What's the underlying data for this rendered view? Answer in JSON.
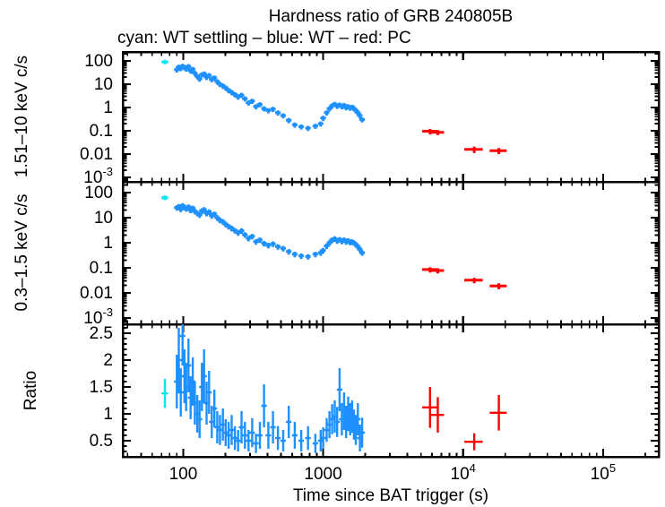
{
  "title": "Hardness ratio of GRB 240805B",
  "subtitle": "cyan: WT settling – blue: WT – red: PC",
  "colors": {
    "wt_settling": "#00e5ee",
    "wt": "#1e90ff",
    "pc": "#ff0000",
    "axis": "#000000"
  },
  "xaxis": {
    "label": "Time since BAT trigger (s)",
    "scale": "log",
    "lim": [
      37,
      250000
    ],
    "ticks": [
      {
        "v": 100,
        "label": "100"
      },
      {
        "v": 1000,
        "label": "1000"
      },
      {
        "v": 10000,
        "label": "10^4"
      },
      {
        "v": 100000,
        "label": "10^5"
      }
    ]
  },
  "chart_data": [
    {
      "type": "scatter",
      "name": "hard-band-lightcurve",
      "ylabel": "1.51–10 keV c/s",
      "xscale": "log",
      "yscale": "log",
      "xlim": [
        37,
        250000
      ],
      "ylim": [
        0.00064,
        242
      ],
      "yticks": [
        {
          "v": 100,
          "label": "100"
        },
        {
          "v": 10,
          "label": "10"
        },
        {
          "v": 1,
          "label": "1"
        },
        {
          "v": 0.1,
          "label": "0.1"
        },
        {
          "v": 0.01,
          "label": "0.01"
        },
        {
          "v": 0.001,
          "label": "10^-3"
        }
      ],
      "series": [
        {
          "name": "WT settling",
          "color_key": "wt_settling",
          "points": [
            [
              74,
              90,
              4,
              18
            ]
          ]
        },
        {
          "name": "WT",
          "color_key": "wt",
          "t": [
            90,
            93,
            96,
            99,
            102,
            105,
            109,
            113,
            117,
            121,
            126,
            131,
            136,
            141,
            147,
            153,
            160,
            167,
            175,
            183,
            192,
            201,
            211,
            222,
            234,
            247,
            261,
            276,
            293,
            311,
            331,
            353,
            378,
            406,
            438,
            475,
            518,
            568,
            627,
            697,
            780,
            880,
            960,
            1000,
            1060,
            1110,
            1160,
            1210,
            1260,
            1310,
            1360,
            1410,
            1460,
            1510,
            1560,
            1610,
            1660,
            1710,
            1770,
            1830,
            1900
          ],
          "y": [
            42,
            55,
            48,
            60,
            52,
            46,
            58,
            38,
            44,
            30,
            22,
            17,
            26,
            28,
            20,
            24,
            16,
            19,
            13,
            10,
            8.5,
            7,
            5.5,
            4.5,
            3.6,
            2.9,
            3.4,
            2.4,
            1.6,
            1.9,
            1.1,
            1.35,
            0.9,
            0.75,
            0.85,
            0.6,
            0.45,
            0.28,
            0.18,
            0.15,
            0.13,
            0.16,
            0.2,
            0.35,
            0.6,
            0.9,
            1.2,
            1.4,
            1.15,
            1.3,
            1.1,
            1.25,
            1.0,
            1.1,
            0.95,
            1.05,
            0.9,
            0.75,
            0.6,
            0.45,
            0.3
          ]
        },
        {
          "name": "PC",
          "color_key": "pc",
          "points": [
            [
              5800,
              0.095,
              700,
              0.025
            ],
            [
              6600,
              0.085,
              700,
              0.02
            ],
            [
              12000,
              0.016,
              1800,
              0.005
            ],
            [
              18000,
              0.014,
              2500,
              0.004
            ]
          ]
        }
      ]
    },
    {
      "type": "scatter",
      "name": "soft-band-lightcurve",
      "ylabel": "0.3–1.5 keV c/s",
      "xscale": "log",
      "yscale": "log",
      "xlim": [
        37,
        250000
      ],
      "ylim": [
        0.00056,
        268
      ],
      "yticks": [
        {
          "v": 100,
          "label": "100"
        },
        {
          "v": 10,
          "label": "10"
        },
        {
          "v": 1,
          "label": "1"
        },
        {
          "v": 0.1,
          "label": "0.1"
        },
        {
          "v": 0.01,
          "label": "0.01"
        },
        {
          "v": 0.001,
          "label": "10^-3"
        }
      ],
      "series": [
        {
          "name": "WT settling",
          "color_key": "wt_settling",
          "points": [
            [
              74,
              62,
              4,
              12
            ]
          ]
        },
        {
          "name": "WT",
          "color_key": "wt",
          "t": [
            90,
            93,
            96,
            99,
            102,
            105,
            109,
            113,
            117,
            121,
            126,
            131,
            136,
            141,
            147,
            153,
            160,
            167,
            175,
            183,
            192,
            201,
            211,
            222,
            234,
            247,
            261,
            276,
            293,
            311,
            331,
            353,
            378,
            406,
            438,
            475,
            518,
            568,
            627,
            697,
            780,
            880,
            960,
            1000,
            1060,
            1110,
            1160,
            1210,
            1260,
            1310,
            1360,
            1410,
            1460,
            1510,
            1560,
            1610,
            1660,
            1710,
            1770,
            1830,
            1900
          ],
          "y": [
            25,
            28,
            22,
            30,
            26,
            23,
            27,
            20,
            24,
            18,
            15,
            13,
            19,
            21,
            15,
            17,
            12,
            14,
            10,
            8,
            7,
            5.5,
            4.5,
            3.8,
            3.1,
            2.5,
            3.0,
            2.1,
            1.5,
            1.8,
            1.1,
            1.3,
            0.95,
            0.8,
            0.9,
            0.7,
            0.6,
            0.45,
            0.35,
            0.3,
            0.28,
            0.35,
            0.4,
            0.5,
            0.75,
            1.0,
            1.3,
            1.45,
            1.2,
            1.35,
            1.15,
            1.3,
            1.1,
            1.2,
            1.05,
            1.1,
            1.0,
            0.85,
            0.7,
            0.55,
            0.4
          ]
        },
        {
          "name": "PC",
          "color_key": "pc",
          "points": [
            [
              5800,
              0.085,
              700,
              0.02
            ],
            [
              6600,
              0.078,
              700,
              0.018
            ],
            [
              12000,
              0.032,
              1800,
              0.008
            ],
            [
              18000,
              0.019,
              2500,
              0.005
            ]
          ]
        }
      ]
    },
    {
      "type": "scatter",
      "name": "hardness-ratio",
      "ylabel": "Ratio",
      "xscale": "log",
      "yscale": "linear",
      "xlim": [
        37,
        250000
      ],
      "ylim": [
        0.2,
        2.667
      ],
      "yticks": [
        {
          "v": 0.5,
          "label": "0.5"
        },
        {
          "v": 1,
          "label": "1"
        },
        {
          "v": 1.5,
          "label": "1.5"
        },
        {
          "v": 2,
          "label": "2"
        },
        {
          "v": 2.5,
          "label": "2.5"
        }
      ],
      "yminor_step": 0.1,
      "series": [
        {
          "name": "WT settling",
          "color_key": "wt_settling",
          "points": [
            [
              74,
              1.38,
              4,
              0.27
            ]
          ]
        },
        {
          "name": "WT",
          "color_key": "wt",
          "t": [
            90,
            93,
            96,
            99,
            102,
            105,
            109,
            113,
            117,
            121,
            126,
            131,
            136,
            141,
            147,
            153,
            160,
            167,
            175,
            183,
            192,
            201,
            211,
            222,
            234,
            247,
            261,
            276,
            293,
            311,
            331,
            353,
            378,
            406,
            438,
            475,
            518,
            568,
            627,
            697,
            780,
            880,
            960,
            1000,
            1060,
            1110,
            1160,
            1210,
            1260,
            1310,
            1360,
            1410,
            1460,
            1510,
            1560,
            1610,
            1660,
            1710,
            1770,
            1830,
            1900
          ],
          "v": [
            1.6,
            2.0,
            1.4,
            2.45,
            1.7,
            1.5,
            1.9,
            1.3,
            1.6,
            1.2,
            1.0,
            0.9,
            1.5,
            1.7,
            1.2,
            1.4,
            0.85,
            1.1,
            0.75,
            0.7,
            0.8,
            0.65,
            0.6,
            0.7,
            0.55,
            0.5,
            0.75,
            0.6,
            0.5,
            0.65,
            0.45,
            0.6,
            1.15,
            0.6,
            0.75,
            0.55,
            0.5,
            0.85,
            0.6,
            0.5,
            0.55,
            0.45,
            0.5,
            0.55,
            0.7,
            0.8,
            0.9,
            0.95,
            0.85,
            1.45,
            0.9,
            1.05,
            0.85,
            1.0,
            0.9,
            0.95,
            0.8,
            0.7,
            0.9,
            0.55,
            0.65
          ],
          "e": [
            0.5,
            0.6,
            0.45,
            0.55,
            0.5,
            0.45,
            0.5,
            0.4,
            0.45,
            0.4,
            0.35,
            0.35,
            0.45,
            0.5,
            0.4,
            0.4,
            0.3,
            0.35,
            0.3,
            0.28,
            0.3,
            0.25,
            0.25,
            0.28,
            0.22,
            0.2,
            0.3,
            0.25,
            0.2,
            0.27,
            0.18,
            0.25,
            0.4,
            0.25,
            0.3,
            0.22,
            0.2,
            0.3,
            0.25,
            0.2,
            0.22,
            0.18,
            0.2,
            0.2,
            0.22,
            0.25,
            0.28,
            0.3,
            0.28,
            0.4,
            0.3,
            0.35,
            0.3,
            0.32,
            0.3,
            0.3,
            0.28,
            0.28,
            0.3,
            0.25,
            0.28
          ]
        },
        {
          "name": "PC",
          "color_key": "pc",
          "points": [
            [
              5800,
              1.12,
              700,
              0.38
            ],
            [
              6600,
              0.98,
              700,
              0.33
            ],
            [
              12000,
              0.48,
              1800,
              0.16
            ],
            [
              18000,
              1.02,
              2500,
              0.33
            ]
          ]
        }
      ]
    }
  ]
}
